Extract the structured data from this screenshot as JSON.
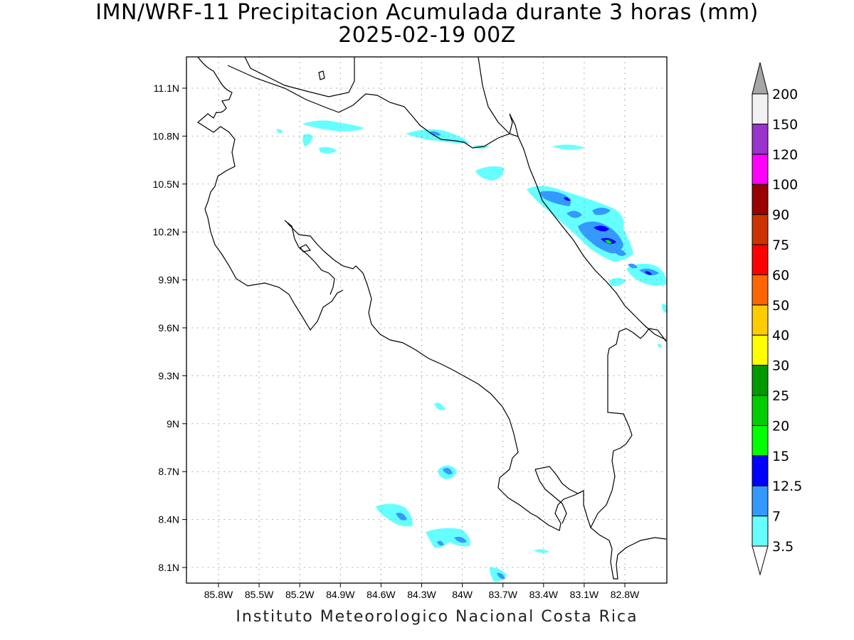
{
  "header": {
    "title": "IMN/WRF-11 Precipitacion Acumulada durante 3 horas (mm)",
    "subtitle": "2025-02-19 00Z"
  },
  "footer": {
    "credit": "Instituto Meteorologico Nacional Costa Rica"
  },
  "map": {
    "lat_labels": [
      "11.1N",
      "10.8N",
      "10.5N",
      "10.2N",
      "9.9N",
      "9.6N",
      "9.3N",
      "9N",
      "8.7N",
      "8.4N",
      "8.1N"
    ],
    "lon_labels": [
      "85.8W",
      "85.5W",
      "85.2W",
      "84.9W",
      "84.6W",
      "84.3W",
      "84W",
      "83.7W",
      "83.4W",
      "83.1W",
      "82.8W"
    ],
    "grid": "dotted",
    "coastline_color": "#000000"
  },
  "legend": {
    "levels": [
      "3.5",
      "7",
      "12.5",
      "15",
      "20",
      "25",
      "30",
      "40",
      "50",
      "60",
      "75",
      "90",
      "100",
      "120",
      "150",
      "200"
    ],
    "colors": [
      "#66ffff",
      "#3399ff",
      "#0000ff",
      "#00ff00",
      "#00cc00",
      "#009900",
      "#ffff00",
      "#ffcc00",
      "#ff6600",
      "#ff0000",
      "#cc3300",
      "#990000",
      "#ff00ff",
      "#9933cc",
      "#f2f2f2",
      "#a6a6a6"
    ],
    "under_color": "#ffffff",
    "over_color": "#a6a6a6"
  },
  "palette": {
    "light_cyan": "#66ffff",
    "blue": "#3399ff",
    "dark_blue": "#0000ff",
    "green": "#00ff00"
  }
}
